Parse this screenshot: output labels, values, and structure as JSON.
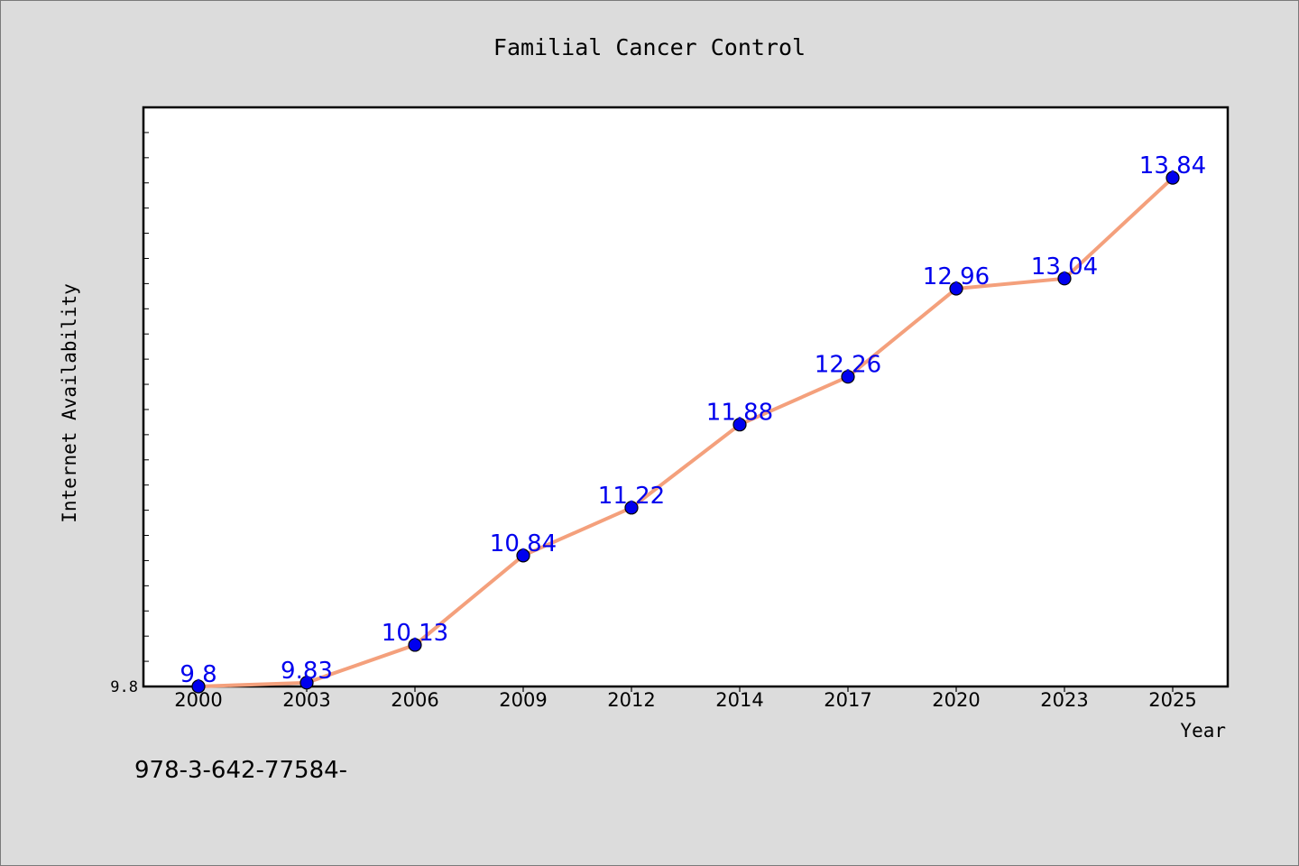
{
  "chart_data": {
    "type": "line",
    "title": "Familial Cancer Control",
    "xlabel": "Year",
    "ylabel": "Internet Availability",
    "categories": [
      "2000",
      "2003",
      "2006",
      "2009",
      "2012",
      "2014",
      "2017",
      "2020",
      "2023",
      "2025"
    ],
    "series": [
      {
        "values": [
          9.8,
          9.83,
          10.13,
          10.84,
          11.22,
          11.88,
          12.26,
          12.96,
          13.04,
          13.84
        ],
        "labels": [
          "9.8",
          "9.83",
          "10.13",
          "10.84",
          "11.22",
          "11.88",
          "12.26",
          "12.96",
          "13.04",
          "13.84"
        ],
        "line_color": "#f4a07c",
        "marker_color": "#0000ee",
        "label_color": "#0000ee"
      }
    ],
    "y_tick_labels": [
      "9.8"
    ],
    "ylim": [
      9.8,
      14.4
    ],
    "grid": false,
    "legend": "none"
  },
  "footer_text": "978-3-642-77584-"
}
